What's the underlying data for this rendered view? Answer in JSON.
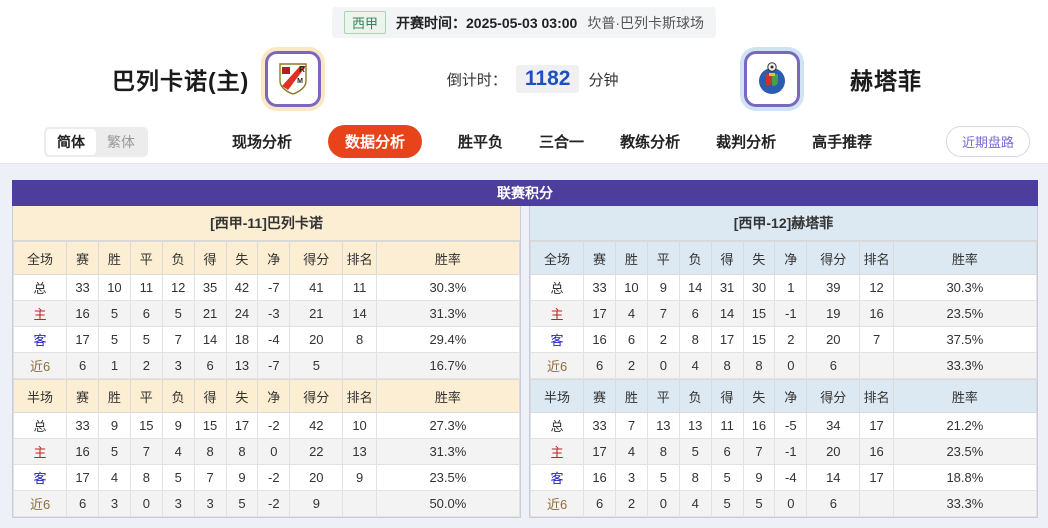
{
  "match_header": {
    "league_badge": "西甲",
    "kickoff_label": "开赛时间：",
    "kickoff_time": "2025-05-03 03:00",
    "venue": "坎普·巴列卡斯球场",
    "home_team_name": "巴列卡诺(主)",
    "away_team_name": "赫塔菲",
    "home_logo_icon": "rayo-vallecano-crest-icon",
    "away_logo_icon": "getafe-crest-icon",
    "countdown_label": "倒计时：",
    "countdown_value": "1182",
    "countdown_unit": "分钟"
  },
  "nav": {
    "lang_simplified": "简体",
    "lang_traditional": "繁体",
    "tabs": [
      {
        "name": "live-analysis",
        "label": "现场分析",
        "active": false
      },
      {
        "name": "data-analysis",
        "label": "数据分析",
        "active": true
      },
      {
        "name": "win-draw-loss",
        "label": "胜平负",
        "active": false
      },
      {
        "name": "three-in-one",
        "label": "三合一",
        "active": false
      },
      {
        "name": "coach-analysis",
        "label": "教练分析",
        "active": false
      },
      {
        "name": "referee-analysis",
        "label": "裁判分析",
        "active": false
      },
      {
        "name": "expert-picks",
        "label": "高手推荐",
        "active": false
      }
    ],
    "recent_odds_button": "近期盘路"
  },
  "league_table": {
    "title": "联赛积分",
    "home": {
      "section_title": "[西甲-11]巴列卡诺",
      "full": {
        "headers": [
          "全场",
          "赛",
          "胜",
          "平",
          "负",
          "得",
          "失",
          "净",
          "得分",
          "排名",
          "胜率"
        ],
        "rows": [
          {
            "label": "总",
            "type": "total",
            "cells": [
              "33",
              "10",
              "11",
              "12",
              "35",
              "42",
              "-7",
              "41",
              "11",
              "30.3%"
            ]
          },
          {
            "label": "主",
            "type": "home",
            "cells": [
              "16",
              "5",
              "6",
              "5",
              "21",
              "24",
              "-3",
              "21",
              "14",
              "31.3%"
            ]
          },
          {
            "label": "客",
            "type": "away",
            "cells": [
              "17",
              "5",
              "5",
              "7",
              "14",
              "18",
              "-4",
              "20",
              "8",
              "29.4%"
            ]
          },
          {
            "label": "近6",
            "type": "recent",
            "cells": [
              "6",
              "1",
              "2",
              "3",
              "6",
              "13",
              "-7",
              "5",
              "",
              "16.7%"
            ]
          }
        ]
      },
      "half": {
        "headers": [
          "半场",
          "赛",
          "胜",
          "平",
          "负",
          "得",
          "失",
          "净",
          "得分",
          "排名",
          "胜率"
        ],
        "rows": [
          {
            "label": "总",
            "type": "total",
            "cells": [
              "33",
              "9",
              "15",
              "9",
              "15",
              "17",
              "-2",
              "42",
              "10",
              "27.3%"
            ]
          },
          {
            "label": "主",
            "type": "home",
            "cells": [
              "16",
              "5",
              "7",
              "4",
              "8",
              "8",
              "0",
              "22",
              "13",
              "31.3%"
            ]
          },
          {
            "label": "客",
            "type": "away",
            "cells": [
              "17",
              "4",
              "8",
              "5",
              "7",
              "9",
              "-2",
              "20",
              "9",
              "23.5%"
            ]
          },
          {
            "label": "近6",
            "type": "recent",
            "cells": [
              "6",
              "3",
              "0",
              "3",
              "3",
              "5",
              "-2",
              "9",
              "",
              "50.0%"
            ]
          }
        ]
      }
    },
    "away": {
      "section_title": "[西甲-12]赫塔菲",
      "full": {
        "headers": [
          "全场",
          "赛",
          "胜",
          "平",
          "负",
          "得",
          "失",
          "净",
          "得分",
          "排名",
          "胜率"
        ],
        "rows": [
          {
            "label": "总",
            "type": "total",
            "cells": [
              "33",
              "10",
              "9",
              "14",
              "31",
              "30",
              "1",
              "39",
              "12",
              "30.3%"
            ]
          },
          {
            "label": "主",
            "type": "home",
            "cells": [
              "17",
              "4",
              "7",
              "6",
              "14",
              "15",
              "-1",
              "19",
              "16",
              "23.5%"
            ]
          },
          {
            "label": "客",
            "type": "away",
            "cells": [
              "16",
              "6",
              "2",
              "8",
              "17",
              "15",
              "2",
              "20",
              "7",
              "37.5%"
            ]
          },
          {
            "label": "近6",
            "type": "recent",
            "cells": [
              "6",
              "2",
              "0",
              "4",
              "8",
              "8",
              "0",
              "6",
              "",
              "33.3%"
            ]
          }
        ]
      },
      "half": {
        "headers": [
          "半场",
          "赛",
          "胜",
          "平",
          "负",
          "得",
          "失",
          "净",
          "得分",
          "排名",
          "胜率"
        ],
        "rows": [
          {
            "label": "总",
            "type": "total",
            "cells": [
              "33",
              "7",
              "13",
              "13",
              "11",
              "16",
              "-5",
              "34",
              "17",
              "21.2%"
            ]
          },
          {
            "label": "主",
            "type": "home",
            "cells": [
              "17",
              "4",
              "8",
              "5",
              "6",
              "7",
              "-1",
              "20",
              "16",
              "23.5%"
            ]
          },
          {
            "label": "客",
            "type": "away",
            "cells": [
              "16",
              "3",
              "5",
              "8",
              "5",
              "9",
              "-4",
              "14",
              "17",
              "18.8%"
            ]
          },
          {
            "label": "近6",
            "type": "recent",
            "cells": [
              "6",
              "2",
              "0",
              "4",
              "5",
              "5",
              "0",
              "6",
              "",
              "33.3%"
            ]
          }
        ]
      }
    }
  },
  "colors": {
    "panel_header_purple": "#4d3e9d",
    "active_tab_orange": "#e8441c",
    "home_section_cream": "#fbeed3",
    "away_section_blue": "#dce9f2",
    "home_row_red": "#c22222",
    "away_row_blue": "#2222cc",
    "countdown_blue": "#1d4fc0",
    "league_badge_green": "#35835a",
    "recent_button_purple": "#7b6ad0"
  }
}
